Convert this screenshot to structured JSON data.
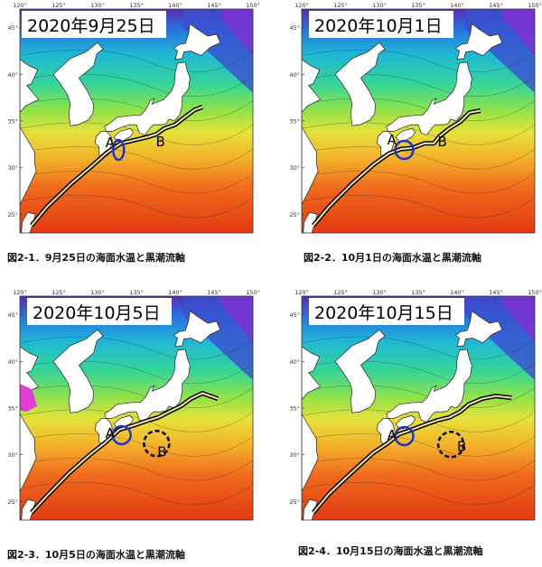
{
  "panels": [
    {
      "date_label": "2020年9月25日",
      "caption": "図2-1．9月25日の海面水温と黒潮流軸",
      "marker_a": "A",
      "marker_b": "B",
      "has_dashed_circle": false
    },
    {
      "date_label": "2020年10月1日",
      "caption": "図2-2．10月1日の海面水温と黒潮流軸",
      "marker_a": "A",
      "marker_b": "B",
      "has_dashed_circle": false
    },
    {
      "date_label": "2020年10月5日",
      "caption": "図2-3．10月5日の海面水温と黒潮流軸",
      "marker_a": "A",
      "marker_b": "B",
      "has_dashed_circle": true
    },
    {
      "date_label": "2020年10月15日",
      "caption": "図2-4．10月15日の海面水温と黒潮流軸",
      "marker_a": "A",
      "marker_b": "B",
      "has_dashed_circle": true
    }
  ],
  "axes": {
    "lon_ticks": [
      "120°",
      "125°",
      "130°",
      "135°",
      "140°",
      "145°",
      "150°"
    ],
    "lat_ticks": [
      "45°",
      "40°",
      "35°",
      "30°",
      "25°"
    ]
  },
  "colors": {
    "kuroshio_axis": "#000000",
    "circle_a": "#2233cc",
    "circle_b": "#000000",
    "land": "#ffffff"
  }
}
